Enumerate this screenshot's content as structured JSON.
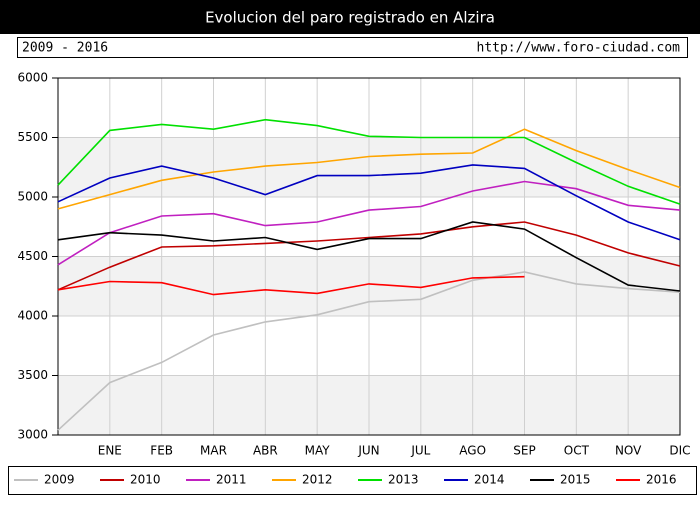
{
  "chart_data": {
    "type": "line",
    "title": "Evolucion del paro registrado en Alzira",
    "subtitle": "2009 - 2016",
    "source": "http://www.foro-ciudad.com",
    "categories": [
      null,
      "ENE",
      "FEB",
      "MAR",
      "ABR",
      "MAY",
      "JUN",
      "JUL",
      "AGO",
      "SEP",
      "OCT",
      "NOV",
      "DIC"
    ],
    "ylim": [
      3000,
      6000
    ],
    "yticks": [
      3000,
      3500,
      4000,
      4500,
      5000,
      5500,
      6000
    ],
    "grid": true,
    "series": [
      {
        "name": "2009",
        "color": "#c0c0c0",
        "values": [
          3040,
          3440,
          3610,
          3840,
          3950,
          4010,
          4120,
          4140,
          4300,
          4370,
          4270,
          4230,
          4200
        ]
      },
      {
        "name": "2010",
        "color": "#c00000",
        "values": [
          4220,
          4410,
          4580,
          4590,
          4610,
          4630,
          4660,
          4690,
          4750,
          4790,
          4680,
          4530,
          4420
        ]
      },
      {
        "name": "2011",
        "color": "#c020c0",
        "values": [
          4430,
          4700,
          4840,
          4860,
          4760,
          4790,
          4890,
          4920,
          5050,
          5130,
          5070,
          4930,
          4890
        ]
      },
      {
        "name": "2012",
        "color": "#ffa500",
        "values": [
          4900,
          5020,
          5140,
          5210,
          5260,
          5290,
          5340,
          5360,
          5370,
          5570,
          5390,
          5230,
          5080
        ]
      },
      {
        "name": "2013",
        "color": "#00e000",
        "values": [
          5100,
          5560,
          5610,
          5570,
          5650,
          5600,
          5510,
          5500,
          5500,
          5500,
          5290,
          5090,
          4940
        ]
      },
      {
        "name": "2014",
        "color": "#0000c0",
        "values": [
          4960,
          5160,
          5260,
          5160,
          5020,
          5180,
          5180,
          5200,
          5270,
          5240,
          5010,
          4790,
          4640
        ]
      },
      {
        "name": "2015",
        "color": "#000000",
        "values": [
          4640,
          4700,
          4680,
          4630,
          4660,
          4560,
          4650,
          4650,
          4790,
          4730,
          4490,
          4260,
          4210
        ]
      },
      {
        "name": "2016",
        "color": "#ff0000",
        "values": [
          4220,
          4290,
          4280,
          4180,
          4220,
          4190,
          4270,
          4240,
          4320,
          4330,
          null,
          null,
          null
        ]
      }
    ]
  }
}
